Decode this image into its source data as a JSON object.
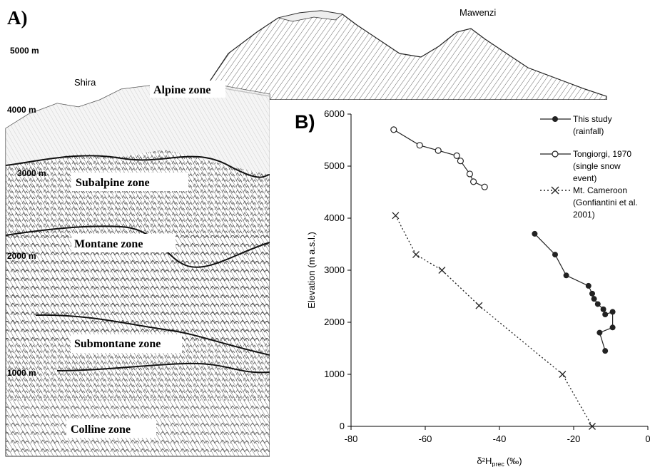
{
  "panel_a": {
    "label": "A)",
    "elevations": [
      "5000 m",
      "4000 m",
      "3000 m",
      "2000 m",
      "1000 m"
    ],
    "peaks": {
      "left": "Shira",
      "right": "Mawenzi"
    },
    "zones": [
      "Alpine zone",
      "Subalpine zone",
      "Montane zone",
      "Submontane zone",
      "Colline zone"
    ]
  },
  "panel_b": {
    "label": "B)",
    "xlabel_main": "δ²H",
    "xlabel_sub": "prec",
    "xlabel_unit": "(‰)",
    "ylabel": "Elevation (m a.s.l.)",
    "legend": [
      {
        "marker": "filled-circle",
        "lines": [
          "This study",
          "(rainfall)"
        ]
      },
      {
        "marker": "open-circle",
        "lines": [
          "Tongiorgi, 1970",
          "(single snow",
          "event)"
        ]
      },
      {
        "marker": "cross",
        "lines": [
          "Mt. Cameroon",
          "(Gonfiantini et al.",
          "2001)"
        ]
      }
    ]
  },
  "chart_data": {
    "type": "scatter",
    "xlim": [
      -80,
      0
    ],
    "ylim": [
      0,
      6000
    ],
    "xticks": [
      "-80",
      "-60",
      "-40",
      "-20",
      "0"
    ],
    "yticks": [
      "0",
      "1000",
      "2000",
      "3000",
      "4000",
      "5000",
      "6000"
    ],
    "xtick_values": [
      -80,
      -60,
      -40,
      -20,
      0
    ],
    "ytick_values": [
      0,
      1000,
      2000,
      3000,
      4000,
      5000,
      6000
    ],
    "grid": false,
    "legend_position": "top-right",
    "series": [
      {
        "name": "This study (rainfall)",
        "marker": "filled-circle",
        "line": "solid",
        "color": "#222222",
        "x": [
          -30.5,
          -25,
          -22,
          -16,
          -15,
          -14.5,
          -13.5,
          -12,
          -11.5,
          -9.5,
          -9.5,
          -13,
          -11.5
        ],
        "y": [
          3700,
          3300,
          2900,
          2700,
          2550,
          2450,
          2350,
          2250,
          2150,
          2200,
          1900,
          1800,
          1450
        ]
      },
      {
        "name": "Tongiorgi, 1970 (single snow event)",
        "marker": "open-circle",
        "line": "solid",
        "color": "#222222",
        "x": [
          -68.5,
          -61.5,
          -56.5,
          -51.5,
          -50.5,
          -48,
          -47,
          -44
        ],
        "y": [
          5700,
          5400,
          5300,
          5200,
          5100,
          4850,
          4700,
          4600
        ]
      },
      {
        "name": "Mt. Cameroon (Gonfiantini et al. 2001)",
        "marker": "cross",
        "line": "dotted",
        "color": "#222222",
        "x": [
          -68,
          -62.5,
          -55.5,
          -45.5,
          -23,
          -15
        ],
        "y": [
          4050,
          3300,
          3000,
          2320,
          1000,
          0
        ]
      }
    ]
  }
}
